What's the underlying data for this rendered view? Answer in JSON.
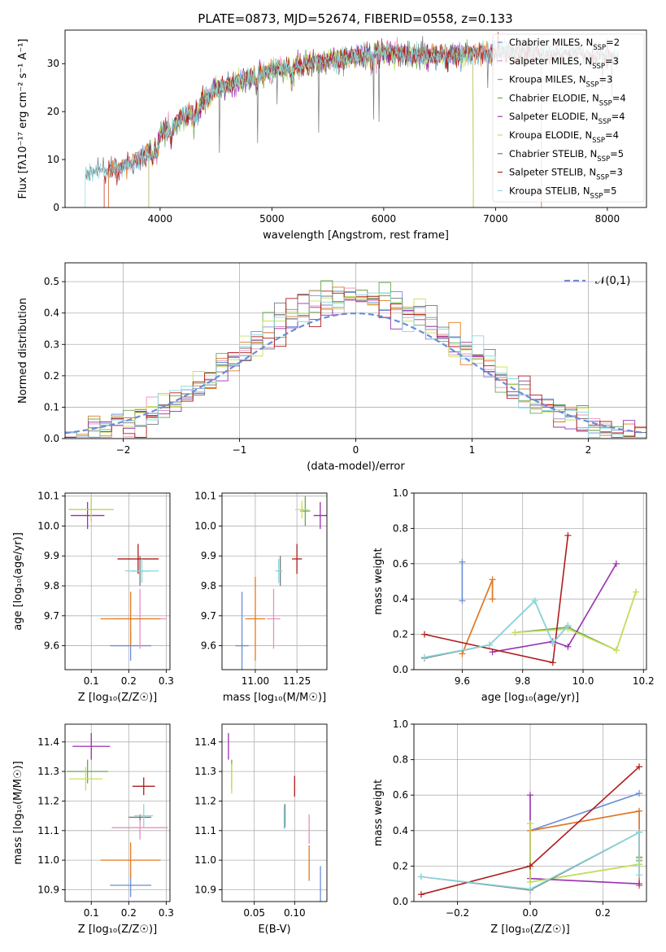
{
  "figure": {
    "title": "PLATE=0873, MJD=52674, FIBERID=0558, z=0.133"
  },
  "colors": {
    "Chabrier MILES": "#6a8ed6",
    "Salpeter MILES": "#e88fbe",
    "Kroupa MILES": "#e07a1f",
    "Chabrier ELODIE": "#6aa84f",
    "Salpeter ELODIE": "#9b30b0",
    "Kroupa ELODIE": "#c8e05a",
    "Chabrier STELIB": "#777777",
    "Salpeter STELIB": "#b01c1c",
    "Kroupa STELIB": "#88d8e0"
  },
  "chart_data": [
    {
      "id": "spectrum",
      "type": "line",
      "title": "PLATE=0873, MJD=52674, FIBERID=0558, z=0.133",
      "xlabel": "wavelength [Angstrom, rest frame]",
      "ylabel": "Flux [fλ10⁻¹⁷ erg cm⁻² s⁻¹ A⁻¹]",
      "xlim": [
        3150,
        8350
      ],
      "ylim": [
        0,
        37
      ],
      "xticks": [
        "4000",
        "5000",
        "6000",
        "7000",
        "8000"
      ],
      "yticks": [
        "0",
        "10",
        "20",
        "30"
      ],
      "grid": false,
      "legend_position": "top-right",
      "legend": [
        {
          "name": "Chabrier MILES",
          "nssp": "2"
        },
        {
          "name": "Salpeter MILES",
          "nssp": "3"
        },
        {
          "name": "Kroupa MILES",
          "nssp": "3"
        },
        {
          "name": "Chabrier ELODIE",
          "nssp": "4"
        },
        {
          "name": "Salpeter ELODIE",
          "nssp": "4"
        },
        {
          "name": "Kroupa ELODIE",
          "nssp": "4"
        },
        {
          "name": "Chabrier STELIB",
          "nssp": "5"
        },
        {
          "name": "Salpeter STELIB",
          "nssp": "3"
        },
        {
          "name": "Kroupa STELIB",
          "nssp": "5"
        }
      ],
      "observed_range": [
        3330,
        8100
      ],
      "continuum": {
        "x": [
          3330,
          3500,
          3700,
          3900,
          4000,
          4100,
          4300,
          4500,
          4800,
          5000,
          5300,
          5600,
          6000,
          6300,
          6700,
          7000,
          7400,
          7800,
          8100
        ],
        "y": [
          7,
          7.5,
          9,
          11.5,
          15,
          17,
          20,
          24.5,
          27,
          28.5,
          30,
          31,
          32.5,
          31.5,
          32,
          32.5,
          32,
          32,
          31
        ]
      },
      "model_ranges": [
        {
          "name": "Chabrier MILES",
          "range": [
            3540,
            7410
          ]
        },
        {
          "name": "Salpeter MILES",
          "range": [
            3540,
            7410
          ]
        },
        {
          "name": "Kroupa MILES",
          "range": [
            3540,
            7410
          ]
        },
        {
          "name": "Chabrier ELODIE",
          "range": [
            3900,
            6800
          ]
        },
        {
          "name": "Salpeter ELODIE",
          "range": [
            3900,
            6800
          ]
        },
        {
          "name": "Kroupa ELODIE",
          "range": [
            3900,
            6800
          ]
        },
        {
          "name": "Chabrier STELIB",
          "range": [
            3330,
            8100
          ]
        },
        {
          "name": "Salpeter STELIB",
          "range": [
            3500,
            8100
          ]
        },
        {
          "name": "Kroupa STELIB",
          "range": [
            3330,
            8100
          ]
        }
      ]
    },
    {
      "id": "residuals",
      "type": "histogram",
      "xlabel": "(data-model)/error",
      "ylabel": "Normed distribution",
      "xlim": [
        -2.5,
        2.5
      ],
      "ylim": [
        0,
        0.56
      ],
      "xticks": [
        "−2",
        "−1",
        "0",
        "1",
        "2"
      ],
      "yticks": [
        "0.0",
        "0.1",
        "0.2",
        "0.3",
        "0.4",
        "0.5"
      ],
      "grid": true,
      "legend_position": "top-right",
      "reference_label": "𝒩(0,1)",
      "bin_width": 0.1,
      "series_order": [
        "Chabrier MILES",
        "Salpeter MILES",
        "Kroupa MILES",
        "Chabrier ELODIE",
        "Salpeter ELODIE",
        "Kroupa ELODIE",
        "Chabrier STELIB",
        "Salpeter STELIB",
        "Kroupa STELIB"
      ]
    },
    {
      "id": "z-age",
      "type": "errorbar",
      "xlabel": "Z [log₁₀(Z/Z☉)]",
      "ylabel": "age  [log₁₀(age/yr)]",
      "xlim": [
        0.03,
        0.31
      ],
      "ylim": [
        9.52,
        10.11
      ],
      "xticks": [
        "0.1",
        "0.2",
        "0.3"
      ],
      "yticks": [
        "9.6",
        "9.7",
        "9.8",
        "9.9",
        "10.0",
        "10.1"
      ],
      "grid": true,
      "points": [
        {
          "series": "Chabrier MILES",
          "x": 0.205,
          "xerr": 0.055,
          "y": 9.6,
          "yerr": 0.05
        },
        {
          "series": "Salpeter MILES",
          "x": 0.23,
          "xerr": 0.07,
          "y": 9.69,
          "yerr": 0.1
        },
        {
          "series": "Kroupa MILES",
          "x": 0.205,
          "xerr": 0.08,
          "y": 9.69,
          "yerr": 0.09
        },
        {
          "series": "Chabrier ELODIE",
          "x": 0.1,
          "xerr": 0.06,
          "y": 10.055,
          "yerr": 0.04
        },
        {
          "series": "Salpeter ELODIE",
          "x": 0.09,
          "xerr": 0.045,
          "y": 10.035,
          "yerr": 0.045
        },
        {
          "series": "Kroupa ELODIE",
          "x": 0.1,
          "xerr": 0.06,
          "y": 10.055,
          "yerr": 0.04
        },
        {
          "series": "Chabrier STELIB",
          "x": 0.23,
          "xerr": 0.025,
          "y": 9.85,
          "yerr": 0.05
        },
        {
          "series": "Salpeter STELIB",
          "x": 0.225,
          "xerr": 0.055,
          "y": 9.89,
          "yerr": 0.05
        },
        {
          "series": "Kroupa STELIB",
          "x": 0.235,
          "xerr": 0.045,
          "y": 9.85,
          "yerr": 0.04
        }
      ]
    },
    {
      "id": "mass-age",
      "type": "errorbar",
      "xlabel": "mass [log₁₀(M/M☉)]",
      "ylabel": "",
      "xlim": [
        10.8,
        11.43
      ],
      "ylim": [
        9.52,
        10.11
      ],
      "xticks": [
        "11.00",
        "11.25"
      ],
      "yticks": [
        "9.6",
        "9.7",
        "9.8",
        "9.9",
        "10.0",
        "10.1"
      ],
      "grid": true,
      "points": [
        {
          "series": "Chabrier MILES",
          "x": 10.92,
          "xerr": 0.04,
          "y": 9.6,
          "yerr": 0.18
        },
        {
          "series": "Salpeter MILES",
          "x": 11.11,
          "xerr": 0.04,
          "y": 9.69,
          "yerr": 0.1
        },
        {
          "series": "Kroupa MILES",
          "x": 11.0,
          "xerr": 0.06,
          "y": 9.69,
          "yerr": 0.14
        },
        {
          "series": "Chabrier ELODIE",
          "x": 11.3,
          "xerr": 0.03,
          "y": 10.05,
          "yerr": 0.05
        },
        {
          "series": "Salpeter ELODIE",
          "x": 11.39,
          "xerr": 0.04,
          "y": 10.035,
          "yerr": 0.045
        },
        {
          "series": "Kroupa ELODIE",
          "x": 11.28,
          "xerr": 0.04,
          "y": 10.055,
          "yerr": 0.03
        },
        {
          "series": "Chabrier STELIB",
          "x": 11.15,
          "xerr": 0.01,
          "y": 9.85,
          "yerr": 0.05
        },
        {
          "series": "Salpeter STELIB",
          "x": 11.25,
          "xerr": 0.03,
          "y": 9.89,
          "yerr": 0.05
        },
        {
          "series": "Kroupa STELIB",
          "x": 11.14,
          "xerr": 0.02,
          "y": 9.85,
          "yerr": 0.04
        }
      ]
    },
    {
      "id": "age-weight",
      "type": "line",
      "xlabel": "age  [log₁₀(age/yr)]",
      "ylabel": "mass weight",
      "xlim": [
        9.44,
        10.21
      ],
      "ylim": [
        0,
        1.0
      ],
      "xticks": [
        "9.6",
        "9.8",
        "10.0",
        "10.2"
      ],
      "yticks": [
        "0.0",
        "0.2",
        "0.4",
        "0.6",
        "0.8",
        "1.0"
      ],
      "grid": true,
      "series": [
        {
          "name": "Chabrier MILES",
          "x": [
            9.6,
            9.6
          ],
          "y": [
            0.61,
            0.39
          ]
        },
        {
          "name": "Salpeter MILES",
          "x": [
            9.6,
            9.7,
            9.7
          ],
          "y": [
            0.09,
            0.51,
            0.4
          ]
        },
        {
          "name": "Kroupa MILES",
          "x": [
            9.6,
            9.7,
            9.7
          ],
          "y": [
            0.09,
            0.51,
            0.4
          ]
        },
        {
          "name": "Chabrier ELODIE",
          "x": [
            9.775,
            9.95,
            10.11,
            10.175
          ],
          "y": [
            0.21,
            0.24,
            0.11,
            0.44
          ]
        },
        {
          "name": "Salpeter ELODIE",
          "x": [
            9.7,
            9.9,
            9.95,
            10.11
          ],
          "y": [
            0.1,
            0.16,
            0.13,
            0.6
          ]
        },
        {
          "name": "Kroupa ELODIE",
          "x": [
            9.775,
            9.95,
            10.11,
            10.175
          ],
          "y": [
            0.21,
            0.23,
            0.11,
            0.44
          ]
        },
        {
          "name": "Chabrier STELIB",
          "x": [
            9.475,
            9.69,
            9.84,
            9.9,
            9.95
          ],
          "y": [
            0.065,
            0.14,
            0.39,
            0.15,
            0.25
          ]
        },
        {
          "name": "Salpeter STELIB",
          "x": [
            9.475,
            9.9,
            9.95
          ],
          "y": [
            0.2,
            0.04,
            0.76
          ]
        },
        {
          "name": "Kroupa STELIB",
          "x": [
            9.475,
            9.69,
            9.84,
            9.9,
            9.95
          ],
          "y": [
            0.07,
            0.14,
            0.39,
            0.15,
            0.25
          ]
        }
      ]
    },
    {
      "id": "z-mass",
      "type": "errorbar",
      "xlabel": "Z [log₁₀(Z/Z☉)]",
      "ylabel": "mass [log₁₀(M/M☉)]",
      "xlim": [
        0.03,
        0.31
      ],
      "ylim": [
        10.86,
        11.46
      ],
      "xticks": [
        "0.1",
        "0.2",
        "0.3"
      ],
      "yticks": [
        "10.9",
        "11.0",
        "11.1",
        "11.2",
        "11.3",
        "11.4"
      ],
      "grid": true,
      "points": [
        {
          "series": "Chabrier MILES",
          "x": 0.205,
          "xerr": 0.055,
          "y": 10.915,
          "yerr": 0.04
        },
        {
          "series": "Salpeter MILES",
          "x": 0.23,
          "xerr": 0.075,
          "y": 11.11,
          "yerr": 0.04
        },
        {
          "series": "Kroupa MILES",
          "x": 0.205,
          "xerr": 0.08,
          "y": 11.0,
          "yerr": 0.06
        },
        {
          "series": "Chabrier ELODIE",
          "x": 0.09,
          "xerr": 0.055,
          "y": 11.3,
          "yerr": 0.04
        },
        {
          "series": "Salpeter ELODIE",
          "x": 0.1,
          "xerr": 0.05,
          "y": 11.385,
          "yerr": 0.045
        },
        {
          "series": "Kroupa ELODIE",
          "x": 0.085,
          "xerr": 0.045,
          "y": 11.275,
          "yerr": 0.04
        },
        {
          "series": "Chabrier STELIB",
          "x": 0.23,
          "xerr": 0.03,
          "y": 11.145,
          "yerr": 0.01
        },
        {
          "series": "Salpeter STELIB",
          "x": 0.24,
          "xerr": 0.03,
          "y": 11.25,
          "yerr": 0.03
        },
        {
          "series": "Kroupa STELIB",
          "x": 0.24,
          "xerr": 0.025,
          "y": 11.15,
          "yerr": 0.04
        }
      ]
    },
    {
      "id": "ebv-mass",
      "type": "errorbar",
      "xlabel": "E(B-V)",
      "ylabel": "",
      "xlim": [
        0.01,
        0.14
      ],
      "ylim": [
        10.86,
        11.46
      ],
      "xticks": [
        "0.05",
        "0.10"
      ],
      "yticks": [
        "10.9",
        "11.0",
        "11.1",
        "11.2",
        "11.3",
        "11.4"
      ],
      "grid": true,
      "points": [
        {
          "series": "Chabrier MILES",
          "x": 0.132,
          "xerr": 0,
          "y": 10.92,
          "yerr": 0.06
        },
        {
          "series": "Salpeter MILES",
          "x": 0.118,
          "xerr": 0,
          "y": 11.105,
          "yerr": 0.05
        },
        {
          "series": "Kroupa MILES",
          "x": 0.118,
          "xerr": 0,
          "y": 10.99,
          "yerr": 0.06
        },
        {
          "series": "Chabrier ELODIE",
          "x": 0.022,
          "xerr": 0,
          "y": 11.29,
          "yerr": 0.05
        },
        {
          "series": "Salpeter ELODIE",
          "x": 0.018,
          "xerr": 0,
          "y": 11.385,
          "yerr": 0.045
        },
        {
          "series": "Kroupa ELODIE",
          "x": 0.022,
          "xerr": 0,
          "y": 11.275,
          "yerr": 0.05
        },
        {
          "series": "Chabrier STELIB",
          "x": 0.088,
          "xerr": 0,
          "y": 11.15,
          "yerr": 0.04
        },
        {
          "series": "Salpeter STELIB",
          "x": 0.1,
          "xerr": 0,
          "y": 11.25,
          "yerr": 0.035
        },
        {
          "series": "Kroupa STELIB",
          "x": 0.087,
          "xerr": 0,
          "y": 11.145,
          "yerr": 0.04
        }
      ]
    },
    {
      "id": "z-weight",
      "type": "line",
      "xlabel": "Z [log₁₀(Z/Z☉)]",
      "ylabel": "mass weight",
      "xlim": [
        -0.32,
        0.32
      ],
      "ylim": [
        0,
        1.0
      ],
      "xticks": [
        "−0.2",
        "0.0",
        "0.2"
      ],
      "yticks": [
        "0.0",
        "0.2",
        "0.4",
        "0.6",
        "0.8",
        "1.0"
      ],
      "grid": true,
      "series": [
        {
          "name": "Chabrier MILES",
          "x": [
            0.0,
            0.3
          ],
          "y": [
            0.4,
            0.61
          ]
        },
        {
          "name": "Salpeter MILES",
          "x": [
            0.0,
            0.3,
            0.3
          ],
          "y": [
            0.4,
            0.51,
            0.09
          ]
        },
        {
          "name": "Kroupa MILES",
          "x": [
            0.0,
            0.3,
            0.3
          ],
          "y": [
            0.4,
            0.51,
            0.09
          ]
        },
        {
          "name": "Chabrier ELODIE",
          "x": [
            0.0,
            0.0,
            0.3,
            0.3
          ],
          "y": [
            0.44,
            0.11,
            0.21,
            0.23
          ]
        },
        {
          "name": "Salpeter ELODIE",
          "x": [
            0.0,
            0.0,
            0.3
          ],
          "y": [
            0.6,
            0.13,
            0.1
          ]
        },
        {
          "name": "Kroupa ELODIE",
          "x": [
            0.0,
            0.0,
            0.3,
            0.3
          ],
          "y": [
            0.44,
            0.11,
            0.21,
            0.24
          ]
        },
        {
          "name": "Chabrier STELIB",
          "x": [
            -0.3,
            0.0,
            0.3,
            0.3
          ],
          "y": [
            0.14,
            0.065,
            0.39,
            0.25
          ]
        },
        {
          "name": "Salpeter STELIB",
          "x": [
            -0.3,
            0.0,
            0.3
          ],
          "y": [
            0.04,
            0.2,
            0.76
          ]
        },
        {
          "name": "Kroupa STELIB",
          "x": [
            -0.3,
            0.0,
            0.3,
            0.3
          ],
          "y": [
            0.14,
            0.07,
            0.39,
            0.15
          ]
        }
      ]
    }
  ]
}
